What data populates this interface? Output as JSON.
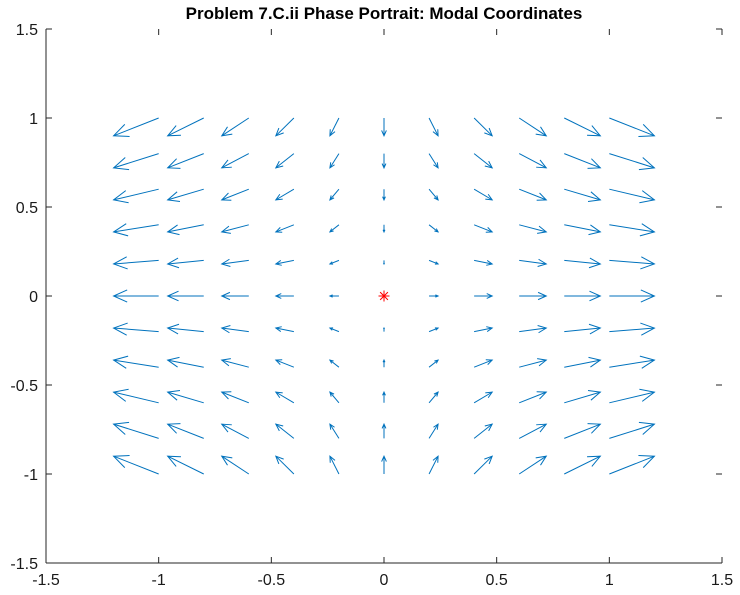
{
  "chart_data": {
    "type": "quiver",
    "title": "Problem 7.C.ii Phase Portrait: Modal Coordinates",
    "xlabel": "",
    "ylabel": "",
    "xlim": [
      -1.5,
      1.5
    ],
    "ylim": [
      -1.5,
      1.5
    ],
    "xticks": [
      "-1.5",
      "-1",
      "-0.5",
      "0",
      "0.5",
      "1",
      "1.5"
    ],
    "yticks": [
      "-1.5",
      "-1",
      "-0.5",
      "0",
      "0.5",
      "1",
      "1.5"
    ],
    "grid": false,
    "arrow_color": "#0072BD",
    "equilibrium_marker": {
      "x": 0,
      "y": 0,
      "symbol": "*",
      "color": "#FF0000"
    },
    "quiver_grid": {
      "x": [
        -1,
        -0.8,
        -0.6,
        -0.4,
        -0.2,
        0,
        0.2,
        0.4,
        0.6,
        0.8,
        1
      ],
      "y": [
        -1,
        -0.8,
        -0.6,
        -0.4,
        -0.2,
        0,
        0.2,
        0.4,
        0.6,
        0.8,
        1
      ],
      "vector_field": {
        "dx": "x",
        "dy": "-0.5*y"
      },
      "display_scale": 0.2
    }
  }
}
